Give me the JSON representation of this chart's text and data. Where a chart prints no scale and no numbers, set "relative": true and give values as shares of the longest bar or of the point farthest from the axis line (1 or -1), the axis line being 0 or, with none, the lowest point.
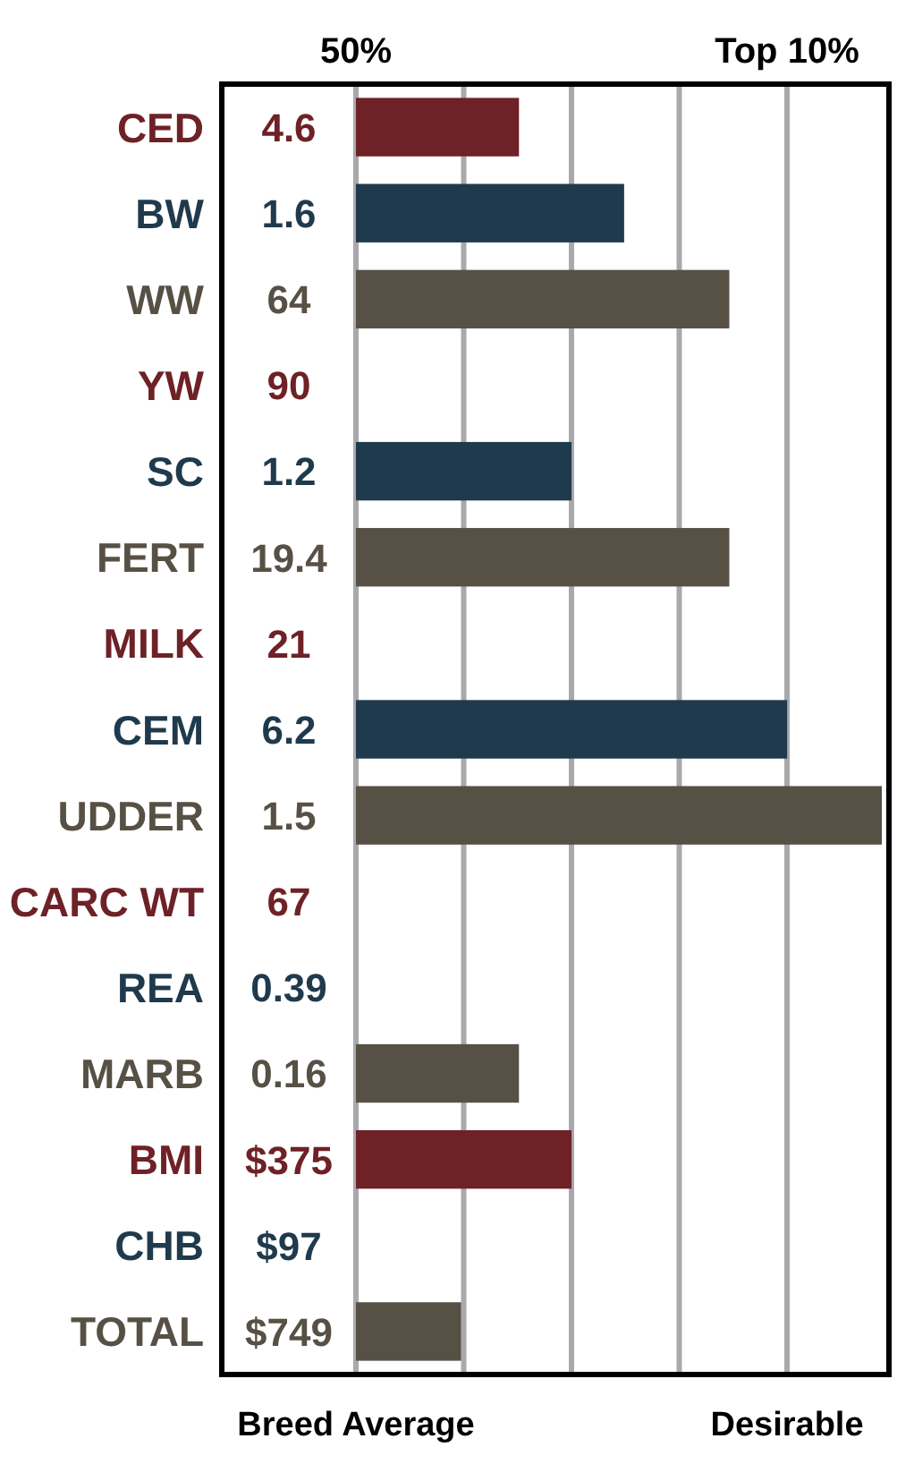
{
  "chart_data": {
    "type": "bar",
    "orientation": "horizontal",
    "relative": true,
    "categories": [
      "CED",
      "BW",
      "WW",
      "YW",
      "SC",
      "FERT",
      "MILK",
      "CEM",
      "UDDER",
      "CARC WT",
      "REA",
      "MARB",
      "BMI",
      "CHB",
      "TOTAL"
    ],
    "values": [
      0.31,
      0.51,
      0.71,
      null,
      0.41,
      0.71,
      null,
      0.82,
      1,
      null,
      null,
      0.31,
      0.41,
      null,
      0.2
    ],
    "colors": [
      "#6e2126",
      "#1f3a4c",
      "#575045",
      "#6e2126",
      "#1f3a4c",
      "#575045",
      "#6e2126",
      "#1f3a4c",
      "#575045",
      "#6e2126",
      "#1f3a4c",
      "#575045",
      "#6e2126",
      "#1f3a4c",
      "#575045"
    ],
    "annotations": [
      "50%",
      "Top 10%",
      "Breed Average",
      "Desirable",
      "4.6",
      "1.6",
      "64",
      "90",
      "1.2",
      "19.4",
      "21",
      "6.2",
      "1.5",
      "67",
      "0.39",
      "0.16",
      "$375",
      "$97",
      "$749"
    ],
    "grid": true
  }
}
